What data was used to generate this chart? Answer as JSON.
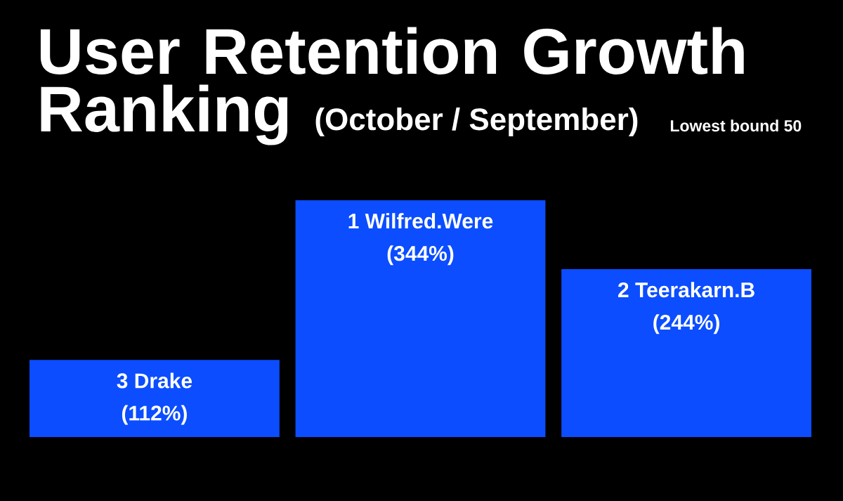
{
  "chart_data": {
    "type": "bar",
    "title": "User Retention Growth Ranking",
    "subtitle": "(October / September)",
    "annotations": [
      "Lowest bound 50"
    ],
    "categories": [
      "3 Drake",
      "1 Wilfred.Were",
      "2  Teerakarn.B"
    ],
    "values": [
      112,
      344,
      244
    ],
    "value_labels": [
      "(112%)",
      "(344%)",
      "(244%)"
    ],
    "color": "#0b4dff",
    "ylim": [
      0,
      344
    ]
  }
}
